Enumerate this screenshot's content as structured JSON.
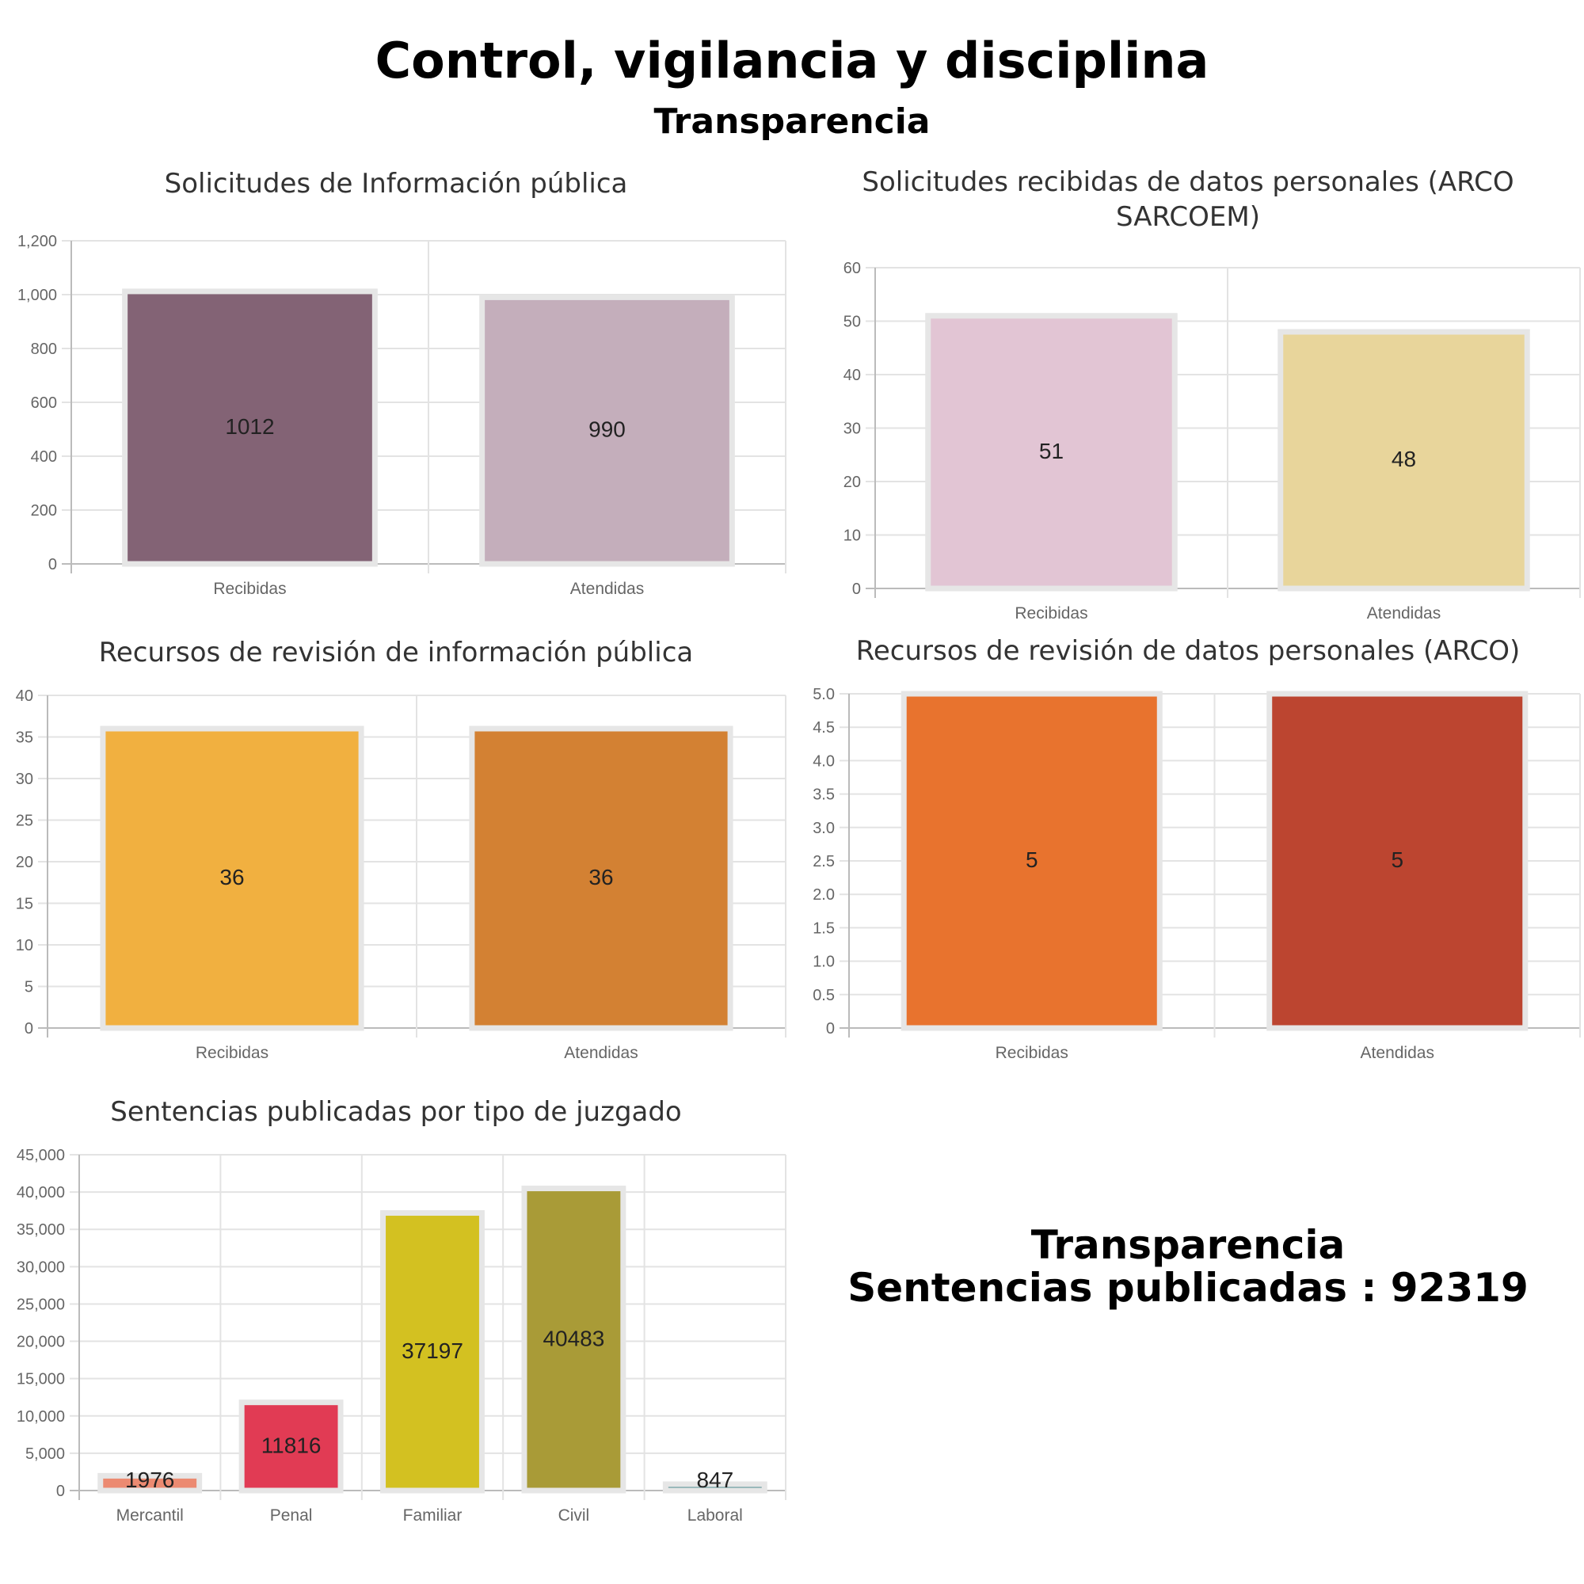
{
  "page": {
    "title": "Control, vigilancia y disciplina",
    "subtitle": "Transparencia"
  },
  "summary": {
    "heading": "Transparencia",
    "label": "Sentencias publicadas :",
    "value": "92319"
  },
  "chart_data": [
    {
      "type": "bar",
      "title": "Solicitudes de Información pública",
      "categories": [
        "Recibidas",
        "Atendidas"
      ],
      "values": [
        1012,
        990
      ],
      "colors": [
        "#836375",
        "#c4aebb"
      ],
      "ylim": [
        0,
        1200
      ],
      "yticks": [
        "0",
        "200",
        "400",
        "600",
        "800",
        "1,000",
        "1,200"
      ],
      "grid": true
    },
    {
      "type": "bar",
      "title": "Solicitudes recibidas de datos personales (ARCO SARCOEM)",
      "categories": [
        "Recibidas",
        "Atendidas"
      ],
      "values": [
        51,
        48
      ],
      "colors": [
        "#e2c5d4",
        "#e8d59b"
      ],
      "ylim": [
        0,
        60
      ],
      "yticks": [
        "0",
        "10",
        "20",
        "30",
        "40",
        "50",
        "60"
      ],
      "grid": true
    },
    {
      "type": "bar",
      "title": "Recursos de revisión de información pública",
      "categories": [
        "Recibidas",
        "Atendidas"
      ],
      "values": [
        36,
        36
      ],
      "colors": [
        "#f1b040",
        "#d38133"
      ],
      "ylim": [
        0,
        40
      ],
      "yticks": [
        "0",
        "5",
        "10",
        "15",
        "20",
        "25",
        "30",
        "35",
        "40"
      ],
      "grid": true
    },
    {
      "type": "bar",
      "title": "Recursos de revisión de datos personales (ARCO)",
      "categories": [
        "Recibidas",
        "Atendidas"
      ],
      "values": [
        5,
        5
      ],
      "colors": [
        "#e8732e",
        "#bc4530"
      ],
      "ylim": [
        0,
        5
      ],
      "yticks": [
        "0",
        "0.5",
        "1.0",
        "1.5",
        "2.0",
        "2.5",
        "3.0",
        "3.5",
        "4.0",
        "4.5",
        "5.0"
      ],
      "grid": true
    },
    {
      "type": "bar",
      "title": "Sentencias publicadas por tipo de juzgado",
      "categories": [
        "Mercantil",
        "Penal",
        "Familiar",
        "Civil",
        "Laboral"
      ],
      "values": [
        1976,
        11816,
        37197,
        40483,
        847
      ],
      "colors": [
        "#ec8a71",
        "#e13b54",
        "#d3c121",
        "#a99b37",
        "#4d8a8d"
      ],
      "ylim": [
        0,
        45000
      ],
      "yticks": [
        "0",
        "5,000",
        "10,000",
        "15,000",
        "20,000",
        "25,000",
        "30,000",
        "35,000",
        "40,000",
        "45,000"
      ],
      "grid": true
    }
  ]
}
